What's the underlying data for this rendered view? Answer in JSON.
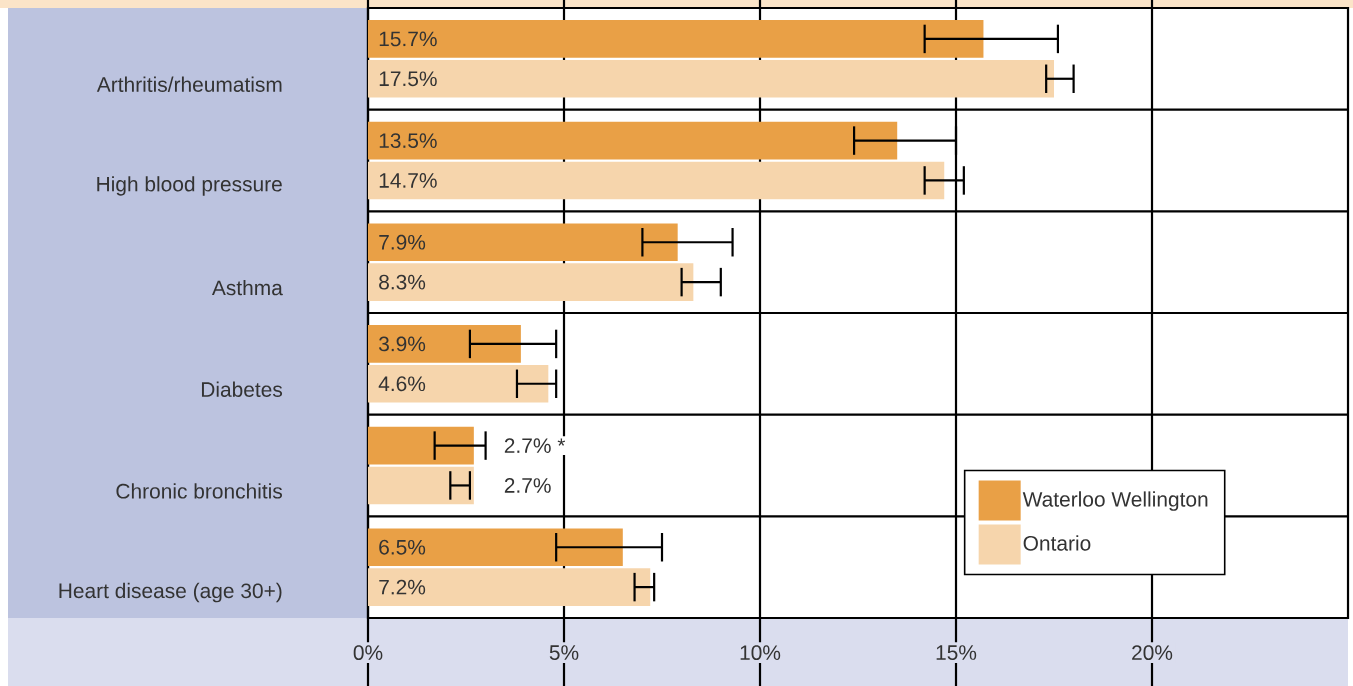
{
  "chart_data": {
    "type": "bar",
    "orientation": "horizontal",
    "categories": [
      "Arthritis/rheumatism",
      "High blood pressure",
      "Asthma",
      "Diabetes",
      "Chronic bronchitis",
      "Heart disease (age 30+)"
    ],
    "series": [
      {
        "name": "Waterloo Wellington",
        "color": "#e9a046",
        "values": [
          15.7,
          13.5,
          7.9,
          3.9,
          2.7,
          6.5
        ],
        "value_labels": [
          "15.7%",
          "13.5%",
          "7.9%",
          "3.9%",
          "2.7% *",
          "6.5%"
        ],
        "errors": [
          [
            14.2,
            17.6
          ],
          [
            12.4,
            15.0
          ],
          [
            7.0,
            9.3
          ],
          [
            2.6,
            4.8
          ],
          [
            1.7,
            3.0
          ],
          [
            4.8,
            7.5
          ]
        ]
      },
      {
        "name": "Ontario",
        "color": "#f6d5ac",
        "values": [
          17.5,
          14.7,
          8.3,
          4.6,
          2.7,
          7.2
        ],
        "value_labels": [
          "17.5%",
          "14.7%",
          "8.3%",
          "4.6%",
          "2.7%",
          "7.2%"
        ],
        "errors": [
          [
            17.3,
            18.0
          ],
          [
            14.2,
            15.2
          ],
          [
            8.0,
            9.0
          ],
          [
            3.8,
            4.8
          ],
          [
            2.1,
            2.6
          ],
          [
            6.8,
            7.3
          ]
        ]
      }
    ],
    "xlim": [
      0,
      25
    ],
    "xticks": [
      {
        "value": 0,
        "label": "0%"
      },
      {
        "value": 5,
        "label": "5%"
      },
      {
        "value": 10,
        "label": "10%"
      },
      {
        "value": 15,
        "label": "15%"
      },
      {
        "value": 20,
        "label": "20%"
      }
    ],
    "grid": "x",
    "legend": "bottom right"
  }
}
